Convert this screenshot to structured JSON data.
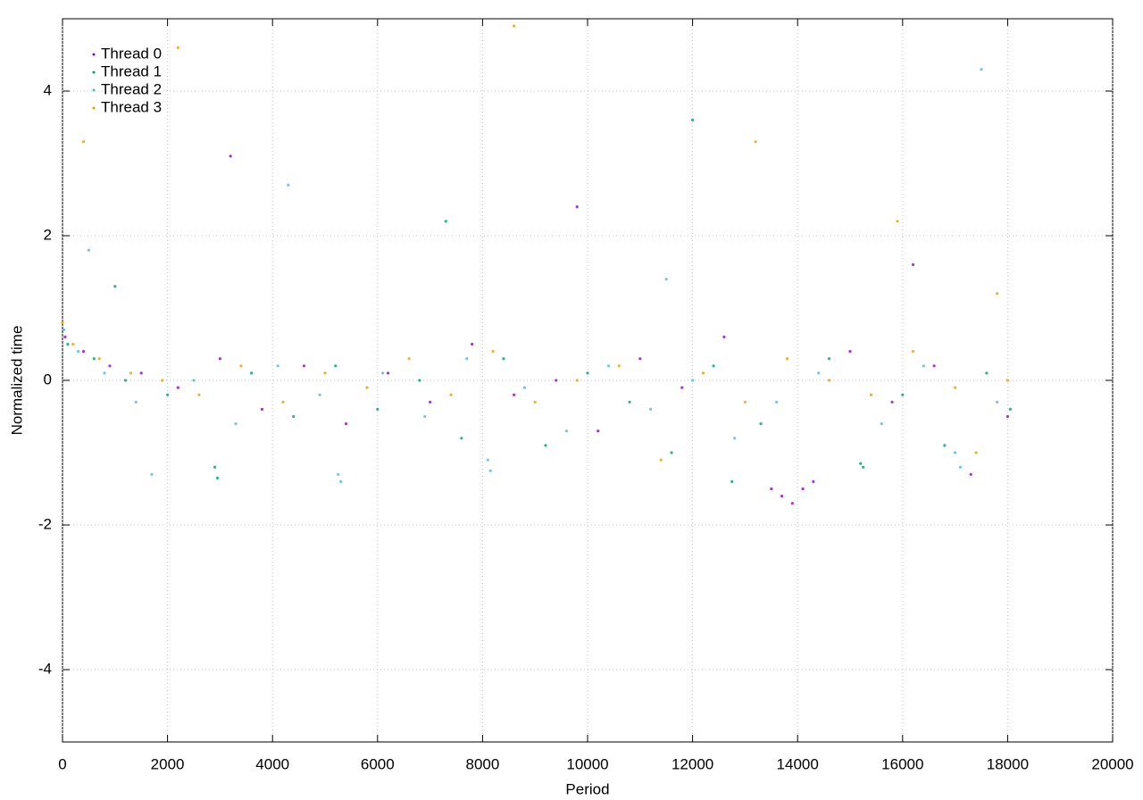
{
  "chart_data": {
    "type": "scatter",
    "xlabel": "Period",
    "ylabel": "Normalized time",
    "xlim": [
      0,
      20000
    ],
    "ylim": [
      -5,
      5
    ],
    "xticks": [
      0,
      2000,
      4000,
      6000,
      8000,
      10000,
      12000,
      14000,
      16000,
      18000,
      20000
    ],
    "yticks": [
      -4,
      -2,
      0,
      2,
      4
    ],
    "grid": true,
    "legend": "top-left",
    "series": [
      {
        "name": "Thread 0",
        "color": "#9400d3",
        "x": [
          50,
          400,
          900,
          1500,
          2200,
          3000,
          3800,
          4600,
          5400,
          6200,
          7000,
          7800,
          8600,
          9400,
          10200,
          11000,
          11800,
          12600,
          13500,
          13700,
          13900,
          14100,
          14300,
          15000,
          15800,
          16600,
          17300,
          18000,
          3200,
          9800,
          16200
        ],
        "values": [
          0.6,
          0.4,
          0.2,
          0.1,
          -0.1,
          0.3,
          -0.4,
          0.2,
          -0.6,
          0.1,
          -0.3,
          0.5,
          -0.2,
          0.0,
          -0.7,
          0.3,
          -0.1,
          0.6,
          -1.5,
          -1.6,
          -1.7,
          -1.5,
          -1.4,
          0.4,
          -0.3,
          0.2,
          -1.3,
          -0.5,
          3.1,
          2.4,
          1.6
        ]
      },
      {
        "name": "Thread 1",
        "color": "#009e73",
        "x": [
          100,
          600,
          1200,
          2000,
          2900,
          2950,
          3600,
          4400,
          5200,
          6000,
          6800,
          7600,
          8400,
          9200,
          10000,
          10800,
          11600,
          12400,
          12750,
          13300,
          14600,
          15200,
          15250,
          16000,
          16800,
          17600,
          18050,
          1000,
          7300,
          12000
        ],
        "values": [
          0.5,
          0.3,
          0.0,
          -0.2,
          -1.2,
          -1.35,
          0.1,
          -0.5,
          0.2,
          -0.4,
          0.0,
          -0.8,
          0.3,
          -0.9,
          0.1,
          -0.3,
          -1.0,
          0.2,
          -1.4,
          -0.6,
          0.3,
          -1.15,
          -1.2,
          -0.2,
          -0.9,
          0.1,
          -0.4,
          1.3,
          2.2,
          3.6
        ]
      },
      {
        "name": "Thread 2",
        "color": "#56b4e9",
        "x": [
          30,
          300,
          800,
          1400,
          1700,
          2500,
          3300,
          4100,
          4900,
          5250,
          5300,
          6100,
          6900,
          7700,
          8100,
          8150,
          8800,
          9600,
          10400,
          11200,
          12000,
          12800,
          13600,
          14400,
          15600,
          16400,
          17000,
          17100,
          17800,
          500,
          4300,
          11500,
          17500
        ],
        "values": [
          0.7,
          0.4,
          0.1,
          -0.3,
          -1.3,
          0.0,
          -0.6,
          0.2,
          -0.2,
          -1.3,
          -1.4,
          0.1,
          -0.5,
          0.3,
          -1.1,
          -1.25,
          -0.1,
          -0.7,
          0.2,
          -0.4,
          0.0,
          -0.8,
          -0.3,
          0.1,
          -0.6,
          0.2,
          -1.0,
          -1.2,
          -0.3,
          1.8,
          2.7,
          1.4,
          4.3
        ]
      },
      {
        "name": "Thread 3",
        "color": "#e69f00",
        "x": [
          0,
          200,
          700,
          1300,
          1900,
          2600,
          3400,
          4200,
          5000,
          5800,
          6600,
          7400,
          8200,
          9000,
          9800,
          10600,
          11400,
          12200,
          13000,
          13800,
          14600,
          15400,
          16200,
          17000,
          17400,
          18000,
          400,
          2200,
          8600,
          13200,
          15900,
          17800
        ],
        "values": [
          0.8,
          0.5,
          0.3,
          0.1,
          0.0,
          -0.2,
          0.2,
          -0.3,
          0.1,
          -0.1,
          0.3,
          -0.2,
          0.4,
          -0.3,
          0.0,
          0.2,
          -1.1,
          0.1,
          -0.3,
          0.3,
          0.0,
          -0.2,
          0.4,
          -0.1,
          -1.0,
          0.0,
          3.3,
          4.6,
          4.9,
          3.3,
          2.2,
          1.2
        ]
      }
    ]
  }
}
